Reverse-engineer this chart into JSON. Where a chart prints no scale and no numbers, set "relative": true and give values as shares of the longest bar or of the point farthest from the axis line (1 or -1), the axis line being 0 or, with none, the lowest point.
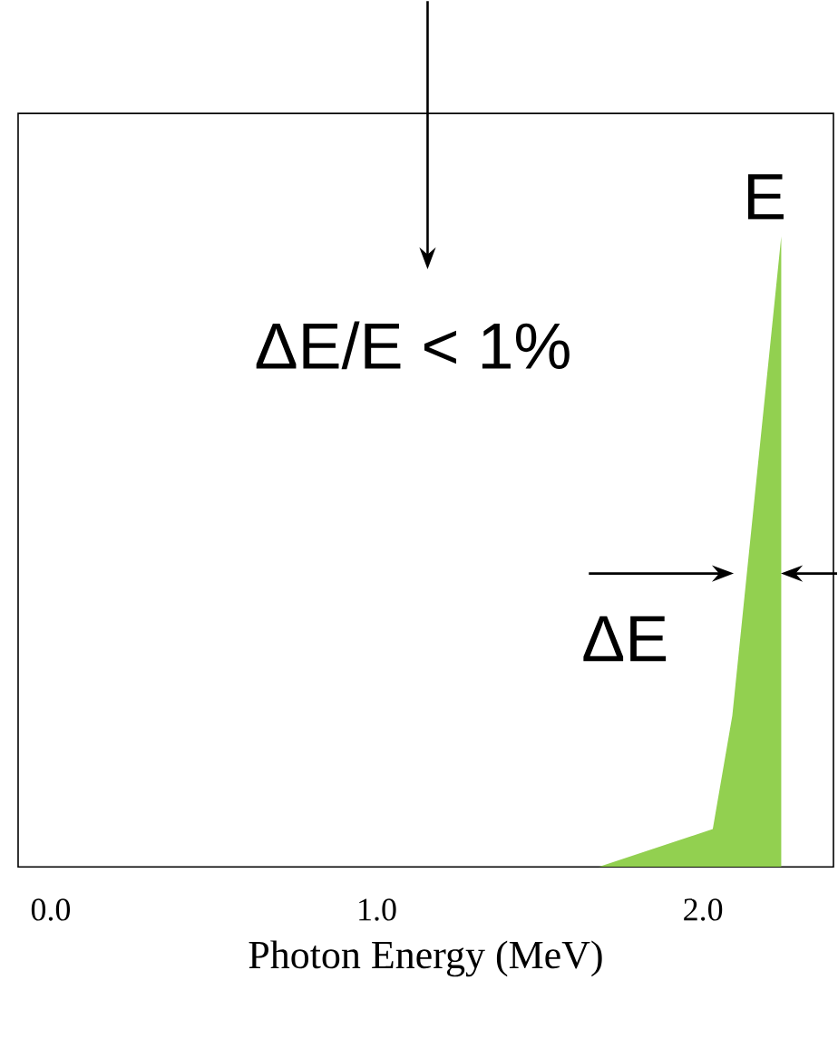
{
  "chart_data": {
    "type": "area",
    "relative": true,
    "xlabel": "Photon Energy (MeV)",
    "xlim": [
      -0.1,
      2.4
    ],
    "xticks": [
      {
        "value": 0,
        "label": "0.0"
      },
      {
        "value": 1,
        "label": "1.0"
      },
      {
        "value": 2,
        "label": "2.0"
      }
    ],
    "series": [
      {
        "color": "#92d050",
        "x": [
          1.68,
          2.03,
          2.09,
          2.24,
          2.24
        ],
        "values": [
          0,
          0.06,
          0.24,
          1,
          0
        ]
      }
    ],
    "annotations": [
      "E",
      "ΔE/E < 1%",
      "ΔE"
    ]
  }
}
